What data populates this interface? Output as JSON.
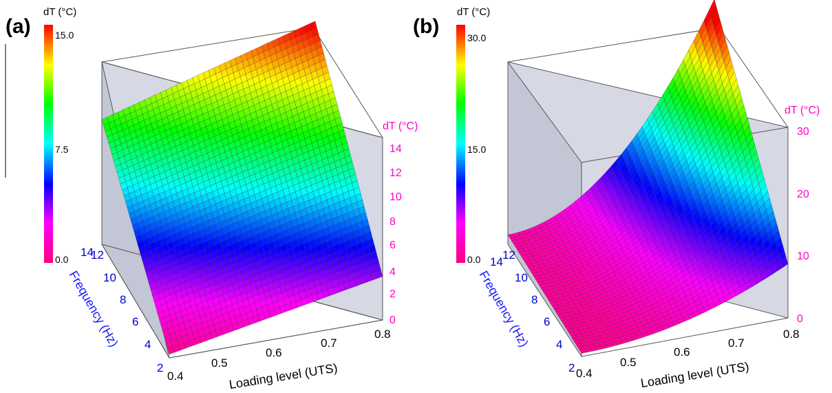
{
  "chart_data": [
    {
      "panel": "(a)",
      "type": "surface3d",
      "xlabel": "Loading level (UTS)",
      "ylabel": "Frequency (Hz)",
      "zlabel": "dT (°C)",
      "colorbar": {
        "title": "dT (°C)",
        "ticks": [
          "0.0",
          "7.5",
          "15.0"
        ],
        "range": [
          0,
          15
        ]
      },
      "x_ticks": [
        "0.4",
        "0.5",
        "0.6",
        "0.7",
        "0.8"
      ],
      "y_ticks": [
        "2",
        "4",
        "6",
        "8",
        "10",
        "12",
        "14"
      ],
      "z_ticks": [
        "0",
        "2",
        "4",
        "6",
        "8",
        "10",
        "12",
        "14"
      ],
      "xlim": [
        0.4,
        0.8
      ],
      "ylim": [
        2,
        14
      ],
      "zlim": [
        0,
        14
      ],
      "corners": {
        "x0.4_f2": 0.3,
        "x0.8_f2": 3.6,
        "x0.4_f14": 10.3,
        "x0.8_f14": 15.3
      },
      "model": "bilinear"
    },
    {
      "panel": "(b)",
      "type": "surface3d",
      "xlabel": "Loading level (UTS)",
      "ylabel": "Frequency (Hz)",
      "zlabel": "dT (°C)",
      "colorbar": {
        "title": "dT (°C)",
        "ticks": [
          "0.0",
          "15.0",
          "30.0"
        ],
        "range": [
          0,
          30
        ]
      },
      "x_ticks": [
        "0.4",
        "0.5",
        "0.6",
        "0.7",
        "0.8"
      ],
      "y_ticks": [
        "2",
        "4",
        "6",
        "8",
        "10",
        "12",
        "14"
      ],
      "z_ticks": [
        "0",
        "10",
        "20",
        "30"
      ],
      "xlim": [
        0.4,
        0.8
      ],
      "ylim": [
        2,
        14
      ],
      "zlim": [
        0,
        30
      ],
      "corners": {
        "x0.4_f2": 0.5,
        "x0.8_f2": 8.5,
        "x0.4_f14": 1.5,
        "x0.8_f14": 32.5
      },
      "model": "quadratic-in-loading"
    }
  ]
}
